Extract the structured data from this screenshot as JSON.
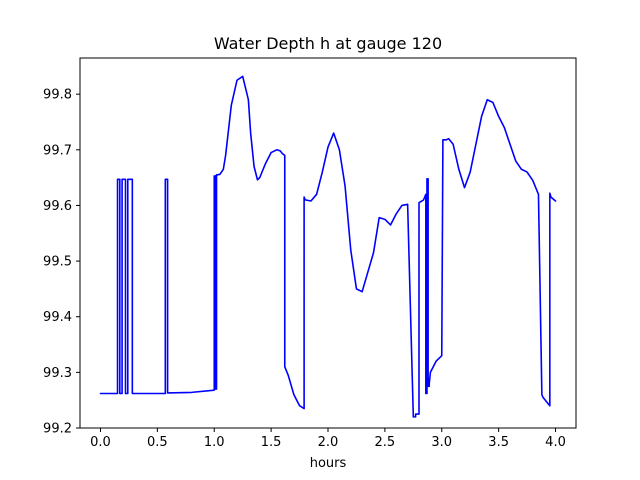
{
  "chart_data": {
    "type": "line",
    "title": "Water Depth h at gauge 120",
    "xlabel": "hours",
    "ylabel": "",
    "xlim": [
      -0.18,
      4.18
    ],
    "ylim": [
      99.2,
      99.865
    ],
    "xticks": [
      0.0,
      0.5,
      1.0,
      1.5,
      2.0,
      2.5,
      3.0,
      3.5,
      4.0
    ],
    "xtick_labels": [
      "0.0",
      "0.5",
      "1.0",
      "1.5",
      "2.0",
      "2.5",
      "3.0",
      "3.5",
      "4.0"
    ],
    "yticks": [
      99.2,
      99.3,
      99.4,
      99.5,
      99.6,
      99.7,
      99.8
    ],
    "ytick_labels": [
      "99.2",
      "99.3",
      "99.4",
      "99.5",
      "99.6",
      "99.7",
      "99.8"
    ],
    "grid": false,
    "series": [
      {
        "color": "#0000ff",
        "x": [
          0.0,
          0.15,
          0.15,
          0.17,
          0.17,
          0.19,
          0.19,
          0.22,
          0.22,
          0.24,
          0.24,
          0.28,
          0.28,
          0.31,
          0.31,
          0.57,
          0.57,
          0.59,
          0.59,
          0.8,
          1.0,
          1.0,
          1.01,
          1.01,
          1.02,
          1.02,
          1.03,
          1.03,
          1.05,
          1.08,
          1.1,
          1.15,
          1.2,
          1.25,
          1.3,
          1.32,
          1.35,
          1.38,
          1.4,
          1.45,
          1.5,
          1.55,
          1.58,
          1.6,
          1.62,
          1.62,
          1.65,
          1.7,
          1.75,
          1.79,
          1.79,
          1.8,
          1.85,
          1.9,
          1.95,
          2.0,
          2.05,
          2.1,
          2.15,
          2.2,
          2.25,
          2.3,
          2.35,
          2.4,
          2.45,
          2.5,
          2.55,
          2.6,
          2.65,
          2.7,
          2.75,
          2.77,
          2.77,
          2.8,
          2.8,
          2.84,
          2.86,
          2.86,
          2.87,
          2.87,
          2.88,
          2.88,
          2.89,
          2.89,
          2.9,
          2.95,
          3.0,
          3.01,
          3.01,
          3.04,
          3.06,
          3.1,
          3.15,
          3.2,
          3.25,
          3.3,
          3.35,
          3.4,
          3.45,
          3.5,
          3.55,
          3.6,
          3.65,
          3.7,
          3.75,
          3.8,
          3.85,
          3.88,
          3.89,
          3.95,
          3.95,
          3.96,
          4.0
        ],
        "y": [
          99.262,
          99.262,
          99.647,
          99.647,
          99.262,
          99.262,
          99.647,
          99.647,
          99.262,
          99.262,
          99.647,
          99.647,
          99.262,
          99.262,
          99.262,
          99.262,
          99.647,
          99.647,
          99.263,
          99.264,
          99.268,
          99.653,
          99.653,
          99.27,
          99.27,
          99.655,
          99.655,
          99.655,
          99.656,
          99.665,
          99.69,
          99.78,
          99.825,
          99.832,
          99.79,
          99.73,
          99.67,
          99.646,
          99.65,
          99.675,
          99.695,
          99.7,
          99.698,
          99.693,
          99.69,
          99.31,
          99.295,
          99.26,
          99.24,
          99.235,
          99.615,
          99.61,
          99.608,
          99.62,
          99.66,
          99.705,
          99.73,
          99.7,
          99.635,
          99.52,
          99.45,
          99.445,
          99.48,
          99.515,
          99.578,
          99.575,
          99.565,
          99.585,
          99.6,
          99.602,
          99.22,
          99.22,
          99.225,
          99.225,
          99.605,
          99.61,
          99.62,
          99.262,
          99.262,
          99.648,
          99.648,
          99.275,
          99.275,
          99.28,
          99.3,
          99.32,
          99.33,
          99.717,
          99.718,
          99.718,
          99.72,
          99.71,
          99.665,
          99.632,
          99.66,
          99.71,
          99.76,
          99.79,
          99.785,
          99.76,
          99.74,
          99.71,
          99.68,
          99.665,
          99.66,
          99.645,
          99.62,
          99.26,
          99.255,
          99.24,
          99.622,
          99.615,
          99.608
        ]
      }
    ]
  }
}
